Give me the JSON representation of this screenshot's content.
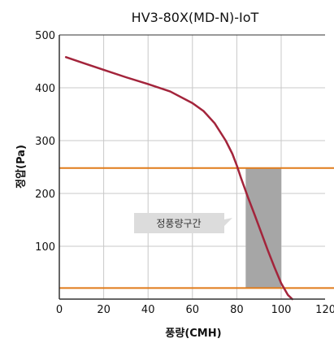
{
  "chart_data": {
    "type": "line",
    "title": "HV3-80X(MD-N)-IoT",
    "xlabel": "풍량(CMH)",
    "ylabel": "정압(Pa)",
    "xlim": [
      0,
      120
    ],
    "ylim": [
      0,
      500
    ],
    "xticks": [
      0,
      20,
      40,
      60,
      80,
      100,
      120
    ],
    "yticks": [
      100,
      200,
      300,
      400,
      500
    ],
    "xtick_labels": [
      "0",
      "20",
      "40",
      "60",
      "80",
      "100",
      "120"
    ],
    "ytick_labels": [
      "100",
      "200",
      "300",
      "400",
      "500"
    ],
    "grid": true,
    "series": [
      {
        "name": "",
        "color": "#a3243b",
        "x": [
          3,
          10,
          20,
          30,
          40,
          50,
          60,
          65,
          70,
          75,
          78,
          80,
          82,
          85,
          88,
          91,
          94,
          97,
          100,
          103,
          105
        ],
        "y": [
          458,
          448,
          434,
          420,
          407,
          393,
          371,
          356,
          333,
          300,
          275,
          253,
          228,
          193,
          160,
          126,
          92,
          60,
          30,
          8,
          0
        ]
      }
    ],
    "reference_lines": {
      "color": "#e07b1a",
      "y": [
        248,
        21
      ]
    },
    "operating_band": {
      "label": "정풍량구간",
      "x": [
        84,
        100
      ],
      "y": [
        21,
        248
      ],
      "color": "#a6a6a6"
    }
  }
}
